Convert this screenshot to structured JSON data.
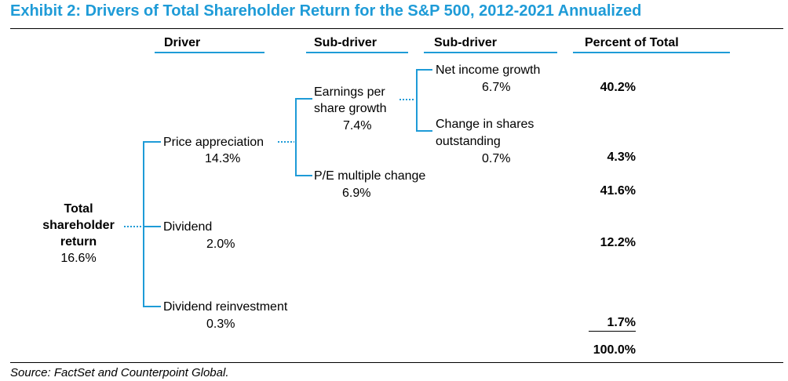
{
  "title": "Exhibit 2: Drivers of Total Shareholder Return for the S&P 500, 2012-2021 Annualized",
  "headers": {
    "driver": "Driver",
    "sub_driver_1": "Sub-driver",
    "sub_driver_2": "Sub-driver",
    "percent": "Percent of Total"
  },
  "root": {
    "label_line1": "Total",
    "label_line2": "shareholder",
    "label_line3": "return",
    "value": "16.6%"
  },
  "drivers": {
    "price_appreciation": {
      "label": "Price appreciation",
      "value": "14.3%"
    },
    "dividend": {
      "label": "Dividend",
      "value": "2.0%"
    },
    "dividend_reinvestment": {
      "label": "Dividend reinvestment",
      "value": "0.3%"
    }
  },
  "sub_drivers": {
    "eps_growth": {
      "label_line1": "Earnings per",
      "label_line2": "share growth",
      "value": "7.4%"
    },
    "pe_change": {
      "label": "P/E multiple change",
      "value": "6.9%"
    },
    "net_income_growth": {
      "label": "Net income growth",
      "value": "6.7%"
    },
    "shares_outstanding": {
      "label_line1": "Change in shares",
      "label_line2": "outstanding",
      "value": "0.7%"
    }
  },
  "percents": {
    "net_income_growth": "40.2%",
    "shares_outstanding": "4.3%",
    "pe_change": "41.6%",
    "dividend": "12.2%",
    "dividend_reinvestment": "1.7%",
    "total": "100.0%"
  },
  "source": "Source: FactSet and Counterpoint Global.",
  "colors": {
    "accent": "#1e9bd7",
    "text": "#000000"
  }
}
